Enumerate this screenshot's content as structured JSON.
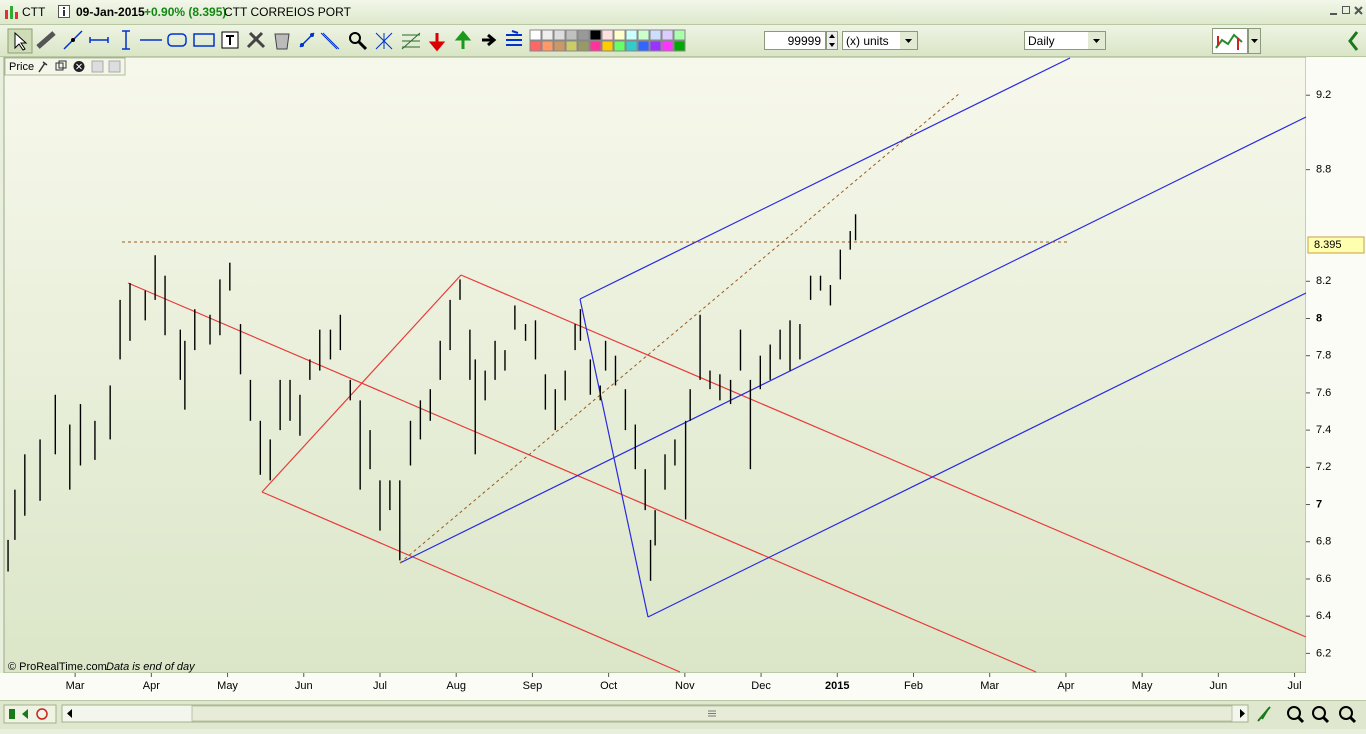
{
  "window": {
    "symbol": "CTT",
    "date": "09-Jan-2015",
    "change": "+0.90% (8.395)",
    "name": "CTT CORREIOS PORT"
  },
  "toolbar": {
    "units_count": "99999",
    "units": "(x) units",
    "period": "Daily"
  },
  "panel": {
    "label": "Price"
  },
  "footer": {
    "copyright": "© ProRealTime.com",
    "note": "Data is end of day"
  },
  "chart_data": {
    "type": "hilo",
    "color": "#000000",
    "x": [
      2.12,
      2.21,
      2.34,
      2.54,
      2.74,
      2.93,
      3.07,
      3.26,
      3.46,
      3.59,
      3.72,
      3.92,
      4.05,
      4.18,
      4.38,
      4.44,
      4.57,
      4.77,
      4.9,
      5.03,
      5.17,
      5.3,
      5.43,
      5.56,
      5.69,
      5.82,
      5.95,
      6.08,
      6.21,
      6.35,
      6.48,
      6.61,
      6.74,
      6.87,
      7.0,
      7.13,
      7.26,
      7.4,
      7.53,
      7.66,
      7.79,
      7.92,
      8.05,
      8.18,
      8.25,
      8.38,
      8.51,
      8.64,
      8.77,
      8.91,
      9.04,
      9.17,
      9.3,
      9.43,
      9.56,
      9.63,
      9.76,
      9.89,
      9.96,
      10.09,
      10.22,
      10.35,
      10.48,
      10.55,
      10.61,
      10.74,
      10.87,
      11.01,
      11.07,
      11.2,
      11.33,
      11.46,
      11.6,
      11.73,
      11.86,
      11.99,
      12.12,
      12.25,
      12.38,
      12.51,
      12.65,
      12.78,
      12.91,
      13.04,
      13.17,
      13.24
    ],
    "high": [
      6.81,
      7.08,
      7.27,
      7.35,
      7.59,
      7.43,
      7.54,
      7.45,
      7.64,
      8.1,
      8.19,
      8.15,
      8.34,
      8.23,
      7.94,
      7.88,
      8.05,
      8.02,
      8.21,
      8.3,
      7.97,
      7.67,
      7.45,
      7.35,
      7.67,
      7.67,
      7.59,
      7.78,
      7.94,
      7.94,
      8.02,
      7.67,
      7.56,
      7.4,
      7.13,
      7.13,
      7.13,
      7.45,
      7.56,
      7.62,
      7.88,
      8.1,
      8.21,
      7.94,
      7.78,
      7.72,
      7.88,
      7.83,
      8.07,
      7.97,
      7.99,
      7.7,
      7.62,
      7.72,
      7.97,
      8.05,
      7.78,
      7.64,
      7.88,
      7.8,
      7.62,
      7.43,
      7.19,
      6.81,
      6.97,
      7.27,
      7.35,
      7.45,
      7.62,
      8.02,
      7.72,
      7.7,
      7.67,
      7.94,
      7.67,
      7.8,
      7.86,
      7.94,
      7.99,
      7.97,
      8.23,
      8.23,
      8.18,
      8.37,
      8.47,
      8.56
    ],
    "low": [
      6.64,
      6.81,
      6.94,
      7.02,
      7.27,
      7.08,
      7.21,
      7.24,
      7.35,
      7.78,
      7.88,
      7.99,
      8.1,
      7.91,
      7.67,
      7.51,
      7.83,
      7.86,
      7.91,
      8.15,
      7.7,
      7.45,
      7.16,
      7.13,
      7.4,
      7.45,
      7.37,
      7.67,
      7.72,
      7.78,
      7.83,
      7.56,
      7.08,
      7.19,
      6.86,
      6.97,
      6.7,
      7.21,
      7.35,
      7.45,
      7.67,
      7.83,
      8.1,
      7.67,
      7.27,
      7.56,
      7.67,
      7.72,
      7.94,
      7.88,
      7.78,
      7.51,
      7.4,
      7.56,
      7.83,
      7.88,
      7.59,
      7.56,
      7.72,
      7.64,
      7.4,
      7.19,
      6.97,
      6.59,
      6.78,
      7.08,
      7.21,
      6.92,
      7.45,
      7.67,
      7.62,
      7.56,
      7.54,
      7.72,
      7.19,
      7.62,
      7.67,
      7.78,
      7.72,
      7.78,
      8.1,
      8.15,
      8.07,
      8.21,
      8.37,
      8.42
    ],
    "last_price": 8.395,
    "xlim": [
      2.08,
      19.15
    ],
    "xticks": [
      {
        "value": 3,
        "label": "Mar"
      },
      {
        "value": 4,
        "label": "Apr"
      },
      {
        "value": 5,
        "label": "May"
      },
      {
        "value": 6,
        "label": "Jun"
      },
      {
        "value": 7,
        "label": "Jul"
      },
      {
        "value": 8,
        "label": "Aug"
      },
      {
        "value": 9,
        "label": "Sep"
      },
      {
        "value": 10,
        "label": "Oct"
      },
      {
        "value": 11,
        "label": "Nov"
      },
      {
        "value": 12,
        "label": "Dec"
      },
      {
        "value": 13,
        "label": "2015"
      },
      {
        "value": 14,
        "label": "Feb"
      },
      {
        "value": 15,
        "label": "Mar"
      },
      {
        "value": 16,
        "label": "Apr"
      },
      {
        "value": 17,
        "label": "May"
      },
      {
        "value": 18,
        "label": "Jun"
      },
      {
        "value": 19,
        "label": "Jul"
      }
    ],
    "ylim": [
      6.1,
      9.4
    ],
    "yticks": [
      6.2,
      6.4,
      6.6,
      6.8,
      7,
      7.2,
      7.4,
      7.6,
      7.8,
      8,
      8.2,
      8.8,
      9.2
    ]
  }
}
